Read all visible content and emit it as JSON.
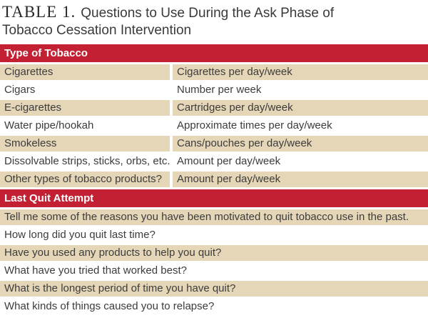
{
  "title": {
    "number": "TABLE 1.",
    "line1": "Questions to Use During the Ask Phase of",
    "line2": "Tobacco Cessation Intervention"
  },
  "colors": {
    "band_red": "#c32033",
    "row_beige": "#e5d6b7",
    "band_text": "#ffffff",
    "body_text": "#3c3c3c"
  },
  "sections": [
    {
      "header": "Type of Tobacco",
      "rows": [
        {
          "col1": "Cigarettes",
          "col2": "Cigarettes per day/week"
        },
        {
          "col1": "Cigars",
          "col2": "Number per week"
        },
        {
          "col1": "E-cigarettes",
          "col2": "Cartridges per day/week"
        },
        {
          "col1": "Water pipe/hookah",
          "col2": "Approximate times per day/week"
        },
        {
          "col1": "Smokeless",
          "col2": "Cans/pouches per day/week"
        },
        {
          "col1": "Dissolvable strips, sticks, orbs, etc.",
          "col2": "Amount per day/week"
        },
        {
          "col1": "Other types of tobacco products?",
          "col2": "Amount per day/week"
        }
      ]
    },
    {
      "header": "Last Quit Attempt",
      "rows": [
        {
          "text": "Tell me some of the reasons you have been motivated to quit tobacco use in the past."
        },
        {
          "text": "How long did you quit last time?"
        },
        {
          "text": "Have you used any products to help you quit?"
        },
        {
          "text": "What have you tried that worked best?"
        },
        {
          "text": "What is the longest period of time you have quit?"
        },
        {
          "text": "What kinds of things caused you to relapse?"
        }
      ]
    }
  ]
}
